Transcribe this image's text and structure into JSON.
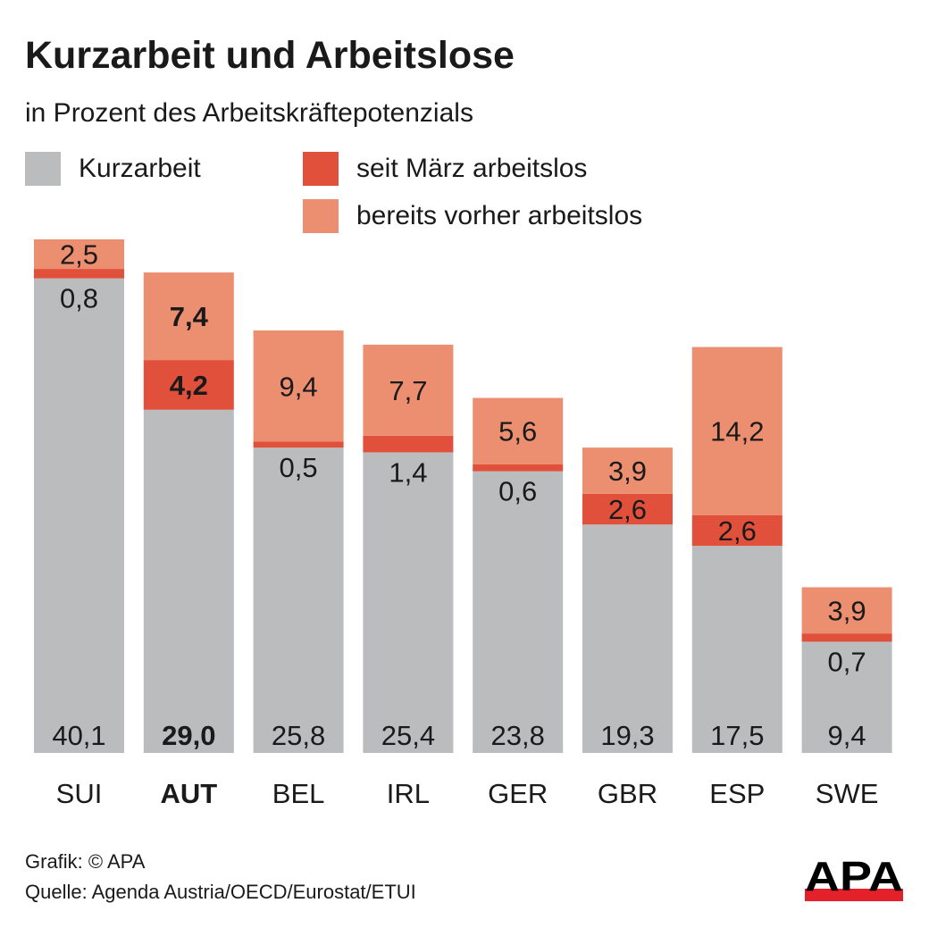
{
  "chart_data": {
    "type": "bar",
    "stacked": true,
    "title": "Kurzarbeit und Arbeitslose",
    "subtitle": "in Prozent des Arbeitskräftepotenzials",
    "categories": [
      "SUI",
      "AUT",
      "BEL",
      "IRL",
      "GER",
      "GBR",
      "ESP",
      "SWE"
    ],
    "highlight": "AUT",
    "series": [
      {
        "name": "Kurzarbeit",
        "color": "#bbbcbe",
        "values": [
          40.1,
          29.0,
          25.8,
          25.4,
          23.8,
          19.3,
          17.5,
          9.4
        ],
        "labels": [
          "40,1",
          "29,0",
          "25,8",
          "25,4",
          "23,8",
          "19,3",
          "17,5",
          "9,4"
        ]
      },
      {
        "name": "seit März arbeitslos",
        "color": "#e0503a",
        "values": [
          0.8,
          4.2,
          0.5,
          1.4,
          0.6,
          2.6,
          2.6,
          0.7
        ],
        "labels": [
          "0,8",
          "4,2",
          "0,5",
          "1,4",
          "0,6",
          "2,6",
          "2,6",
          "0,7"
        ]
      },
      {
        "name": "bereits vorher arbeitslos",
        "color": "#ec8f70",
        "values": [
          2.5,
          7.4,
          9.4,
          7.7,
          5.6,
          3.9,
          14.2,
          3.9
        ],
        "labels": [
          "2,5",
          "7,4",
          "9,4",
          "7,7",
          "5,6",
          "3,9",
          "14,2",
          "3,9"
        ]
      }
    ],
    "legend": "top",
    "grid": false
  },
  "footer": {
    "credit": "Grafik: © APA",
    "source": "Quelle: Agenda Austria/OECD/Eurostat/ETUI"
  },
  "logo": {
    "text": "APA",
    "color": "#e4202b"
  }
}
